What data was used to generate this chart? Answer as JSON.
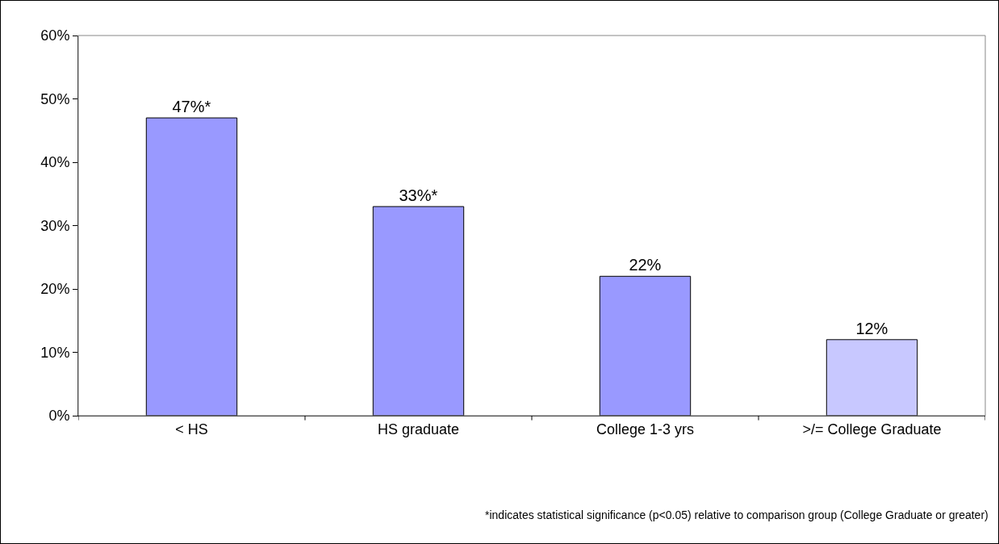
{
  "chart_data": {
    "type": "bar",
    "categories": [
      "< HS",
      "HS graduate",
      "College 1-3 yrs",
      ">/= College Graduate"
    ],
    "values": [
      47,
      33,
      22,
      12
    ],
    "colors": [
      "#9999ff",
      "#9999ff",
      "#9999ff",
      "#c8c8ff"
    ],
    "value_labels": [
      "47%*",
      "33%*",
      "22%",
      "12%"
    ],
    "ylim": [
      0,
      60
    ],
    "yticks": [
      {
        "value": 0,
        "label": "0%"
      },
      {
        "value": 10,
        "label": "10%"
      },
      {
        "value": 20,
        "label": "20%"
      },
      {
        "value": 30,
        "label": "30%"
      },
      {
        "value": 40,
        "label": "40%"
      },
      {
        "value": 50,
        "label": "50%"
      },
      {
        "value": 60,
        "label": "60%"
      }
    ],
    "grid": false,
    "annotations": [
      "*indicates statistical significance (p<0.05) relative to comparison group (College Graduate or greater)"
    ]
  }
}
